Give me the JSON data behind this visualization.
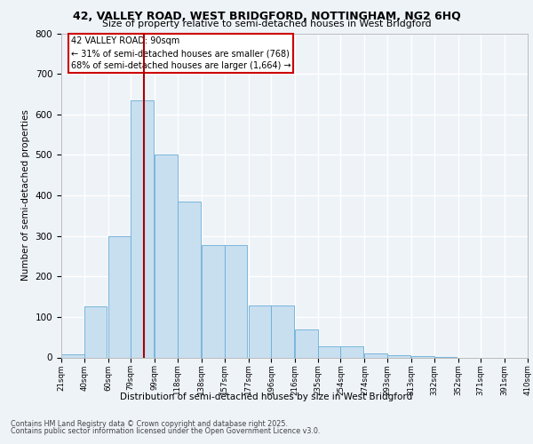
{
  "title1": "42, VALLEY ROAD, WEST BRIDGFORD, NOTTINGHAM, NG2 6HQ",
  "title2": "Size of property relative to semi-detached houses in West Bridgford",
  "xlabel": "Distribution of semi-detached houses by size in West Bridgford",
  "ylabel": "Number of semi-detached properties",
  "bins_left": [
    21,
    40,
    60,
    79,
    99,
    118,
    138,
    157,
    177,
    196,
    216,
    235,
    254,
    274,
    293,
    313,
    332,
    352,
    371,
    391
  ],
  "bin_width": 19,
  "bar_heights": [
    8,
    125,
    300,
    635,
    500,
    385,
    278,
    278,
    128,
    128,
    70,
    27,
    27,
    10,
    5,
    3,
    1,
    0,
    0,
    0
  ],
  "bar_color": "#c8dff0",
  "bar_edge_color": "#6aaed6",
  "property_size": 90,
  "vline_color": "#aa0000",
  "annotation_title": "42 VALLEY ROAD: 90sqm",
  "annotation_line1": "← 31% of semi-detached houses are smaller (768)",
  "annotation_line2": "68% of semi-detached houses are larger (1,664) →",
  "annotation_box_color": "#ffffff",
  "annotation_box_edge": "#cc0000",
  "ylim": [
    0,
    800
  ],
  "yticks": [
    0,
    100,
    200,
    300,
    400,
    500,
    600,
    700,
    800
  ],
  "footer1": "Contains HM Land Registry data © Crown copyright and database right 2025.",
  "footer2": "Contains public sector information licensed under the Open Government Licence v3.0.",
  "background_color": "#eef3f8",
  "plot_bg_color": "#eef3f8",
  "grid_color": "#ffffff"
}
